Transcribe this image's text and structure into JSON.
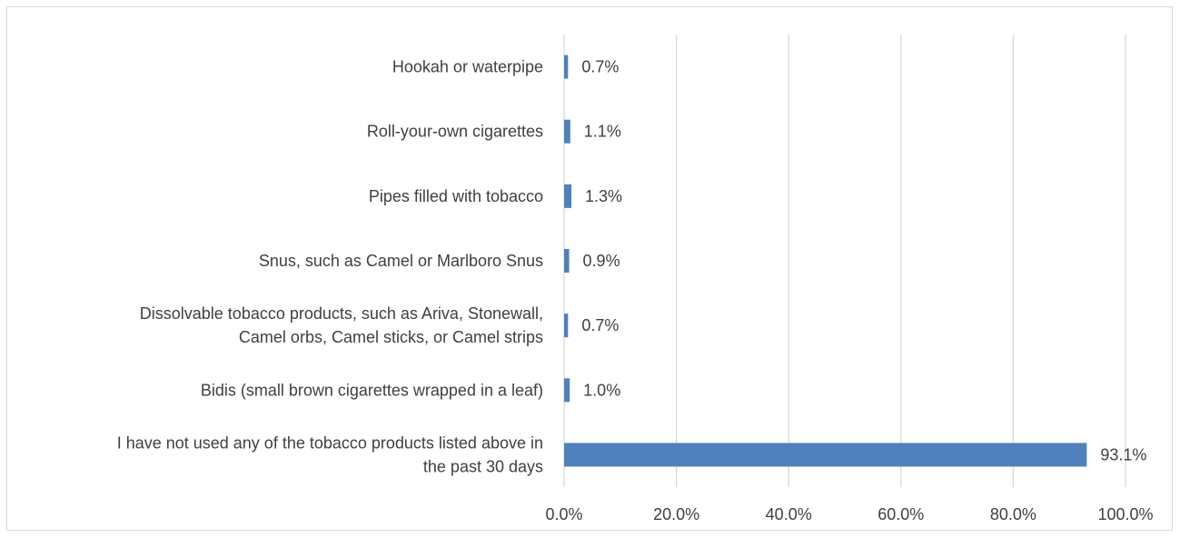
{
  "chart_data": {
    "type": "bar",
    "orientation": "horizontal",
    "categories": [
      [
        "Hookah or waterpipe"
      ],
      [
        "Roll-your-own cigarettes"
      ],
      [
        "Pipes filled with tobacco"
      ],
      [
        "Snus, such as Camel or Marlboro Snus"
      ],
      [
        "Dissolvable tobacco products, such as Ariva, Stonewall,",
        "Camel orbs, Camel sticks, or Camel strips"
      ],
      [
        "Bidis (small brown cigarettes wrapped in a leaf)"
      ],
      [
        "I have not used any of the tobacco products listed above in",
        "the past 30 days"
      ]
    ],
    "values": [
      0.7,
      1.1,
      1.3,
      0.9,
      0.7,
      1.0,
      93.1
    ],
    "data_labels": [
      "0.7%",
      "1.1%",
      "1.3%",
      "0.9%",
      "0.7%",
      "1.0%",
      "93.1%"
    ],
    "xlim": [
      0,
      100
    ],
    "x_ticks": [
      0,
      20,
      40,
      60,
      80,
      100
    ],
    "x_tick_labels": [
      "0.0%",
      "20.0%",
      "40.0%",
      "60.0%",
      "80.0%",
      "100.0%"
    ],
    "grid": true,
    "colors": {
      "bar": "#4f81bd",
      "grid": "#d9d9d9",
      "text": "#404040",
      "frame": "#d9d9d9"
    }
  }
}
